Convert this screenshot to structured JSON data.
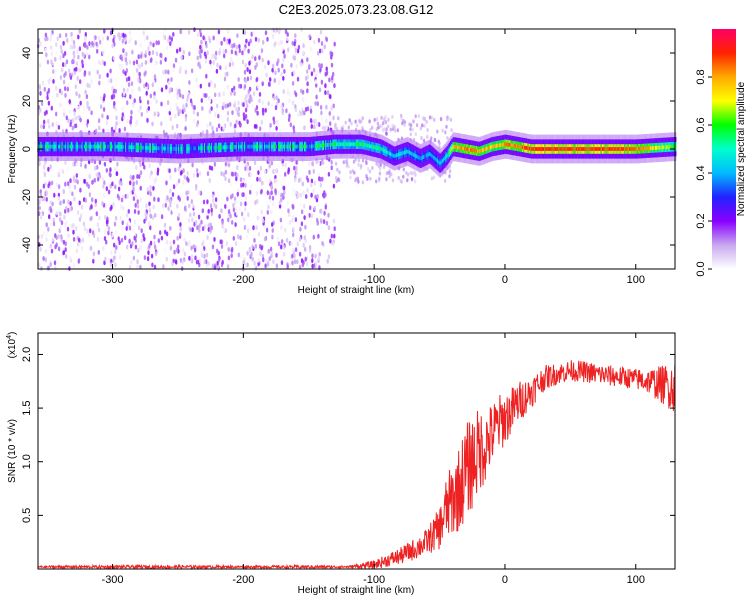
{
  "chart_data": [
    {
      "type": "heatmap",
      "title": "C2E3.2025.073.23.08.G12",
      "xlabel": "Height of straight line (km)",
      "ylabel": "Frequency (Hz)",
      "xlim": [
        -357,
        130
      ],
      "ylim": [
        -50,
        50
      ],
      "x_ticks": [
        -300,
        -200,
        -100,
        0,
        100
      ],
      "x_tick_labels": [
        "-300",
        "-200",
        "-100",
        "0",
        "100"
      ],
      "y_ticks": [
        -40,
        -20,
        0,
        20,
        40
      ],
      "y_tick_labels": [
        "-40",
        "-20",
        "0",
        "20",
        "40"
      ],
      "colorbar": {
        "label": "Normalized spectral amplitude",
        "range": [
          0,
          1
        ],
        "ticks": [
          0.0,
          0.2,
          0.4,
          0.6,
          0.8
        ],
        "tick_labels": [
          "0.0",
          "0.2",
          "0.4",
          "0.6",
          "0.8"
        ],
        "colormap": [
          "#ffffff",
          "#c8a8f0",
          "#8800ff",
          "#2222ff",
          "#00bbff",
          "#00ffcc",
          "#00ff00",
          "#ffff00",
          "#ffaa00",
          "#ff2200",
          "#ff0066"
        ]
      },
      "ridge": {
        "x": [
          -357,
          -300,
          -250,
          -200,
          -150,
          -130,
          -110,
          -95,
          -85,
          -75,
          -65,
          -58,
          -50,
          -45,
          -40,
          -30,
          -20,
          -10,
          0,
          20,
          50,
          80,
          100,
          130
        ],
        "frequency": [
          1,
          1,
          0,
          1,
          1,
          2,
          2,
          0,
          -3,
          -1,
          -4,
          -2,
          -6,
          -3,
          1,
          0,
          -1,
          1,
          2,
          0,
          0,
          0,
          0,
          1
        ],
        "peak_amplitude": [
          0.45,
          0.45,
          0.4,
          0.45,
          0.45,
          0.5,
          0.55,
          0.5,
          0.45,
          0.45,
          0.4,
          0.4,
          0.45,
          0.5,
          0.75,
          0.85,
          0.8,
          0.75,
          0.8,
          0.9,
          0.9,
          0.88,
          0.85,
          0.6
        ]
      },
      "scatter_region": {
        "x_range": [
          -357,
          -130
        ],
        "frequency_range": [
          -50,
          50
        ],
        "amplitude_max": 0.2
      }
    },
    {
      "type": "line",
      "xlabel": "Height of straight line (km)",
      "ylabel": "SNR (10 * v/v)",
      "y_scale_label": "(x10",
      "y_scale_exponent": "4",
      "xlim": [
        -357,
        130
      ],
      "ylim": [
        0,
        2.2
      ],
      "x_ticks": [
        -300,
        -200,
        -100,
        0,
        100
      ],
      "x_tick_labels": [
        "-300",
        "-200",
        "-100",
        "0",
        "100"
      ],
      "y_ticks": [
        0.5,
        1.0,
        1.5,
        2.0
      ],
      "y_tick_labels": [
        "0.5",
        "1.0",
        "1.5",
        "2.0"
      ],
      "color": "#ee2222",
      "series": [
        {
          "x": [
            -357,
            -300,
            -250,
            -200,
            -150,
            -120,
            -100,
            -90,
            -80,
            -70,
            -60,
            -50,
            -45,
            -40,
            -35,
            -30,
            -25,
            -20,
            -15,
            -10,
            -5,
            0,
            10,
            20,
            30,
            40,
            50,
            60,
            70,
            80,
            90,
            100,
            110,
            120,
            130
          ],
          "y": [
            0.02,
            0.02,
            0.02,
            0.02,
            0.02,
            0.02,
            0.04,
            0.08,
            0.12,
            0.18,
            0.25,
            0.38,
            0.55,
            0.65,
            0.75,
            0.9,
            1.0,
            1.1,
            1.15,
            1.25,
            1.35,
            1.4,
            1.55,
            1.65,
            1.78,
            1.82,
            1.85,
            1.84,
            1.82,
            1.8,
            1.79,
            1.77,
            1.75,
            1.72,
            1.7
          ],
          "noise_amplitude": [
            0.01,
            0.015,
            0.015,
            0.01,
            0.015,
            0.01,
            0.04,
            0.06,
            0.08,
            0.1,
            0.12,
            0.2,
            0.3,
            0.35,
            0.4,
            0.45,
            0.45,
            0.4,
            0.35,
            0.3,
            0.28,
            0.25,
            0.2,
            0.15,
            0.12,
            0.1,
            0.1,
            0.1,
            0.1,
            0.1,
            0.1,
            0.1,
            0.12,
            0.18,
            0.25
          ]
        }
      ]
    }
  ]
}
